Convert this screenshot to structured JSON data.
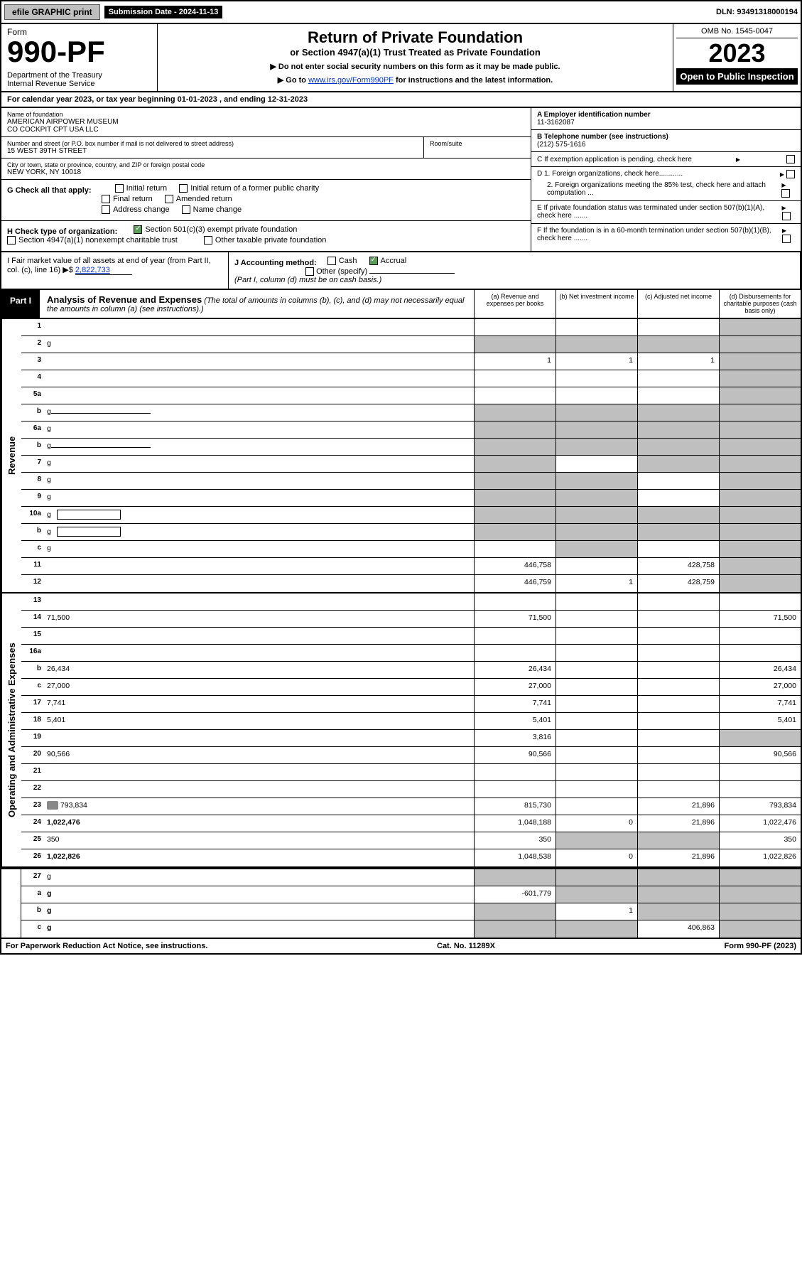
{
  "topbar": {
    "efile": "efile GRAPHIC print",
    "subm_label": "Submission Date - 2024-11-13",
    "dln": "DLN: 93491318000194"
  },
  "header": {
    "form_word": "Form",
    "form_number": "990-PF",
    "dept": "Department of the Treasury\nInternal Revenue Service",
    "title": "Return of Private Foundation",
    "subtitle": "or Section 4947(a)(1) Trust Treated as Private Foundation",
    "instr1": "▶ Do not enter social security numbers on this form as it may be made public.",
    "instr2_pre": "▶ Go to ",
    "instr2_link": "www.irs.gov/Form990PF",
    "instr2_post": " for instructions and the latest information.",
    "omb": "OMB No. 1545-0047",
    "year": "2023",
    "otp": "Open to Public Inspection"
  },
  "calyear": "For calendar year 2023, or tax year beginning 01-01-2023              , and ending 12-31-2023",
  "foundation": {
    "name_label": "Name of foundation",
    "name": "AMERICAN AIRPOWER MUSEUM\nCO COCKPIT CPT USA LLC",
    "addr_label": "Number and street (or P.O. box number if mail is not delivered to street address)",
    "addr": "15 WEST 39TH STREET",
    "room_label": "Room/suite",
    "city_label": "City or town, state or province, country, and ZIP or foreign postal code",
    "city": "NEW YORK, NY  10018",
    "ein_label": "A Employer identification number",
    "ein": "11-3162087",
    "phone_label": "B Telephone number (see instructions)",
    "phone": "(212) 575-1616",
    "c_label": "C If exemption application is pending, check here",
    "d1": "D 1. Foreign organizations, check here............",
    "d2": "2. Foreign organizations meeting the 85% test, check here and attach computation ...",
    "e": "E  If private foundation status was terminated under section 507(b)(1)(A), check here .......",
    "f": "F  If the foundation is in a 60-month termination under section 507(b)(1)(B), check here .......",
    "g_label": "G Check all that apply:",
    "g_opts": [
      "Initial return",
      "Final return",
      "Address change",
      "Initial return of a former public charity",
      "Amended return",
      "Name change"
    ],
    "h_label": "H Check type of organization:",
    "h_opt1": "Section 501(c)(3) exempt private foundation",
    "h_opt2": "Section 4947(a)(1) nonexempt charitable trust",
    "h_opt3": "Other taxable private foundation",
    "i_label": "I Fair market value of all assets at end of year (from Part II, col. (c), line 16) ▶$",
    "i_value": "2,822,733",
    "j_label": "J Accounting method:",
    "j_cash": "Cash",
    "j_accrual": "Accrual",
    "j_other": "Other (specify)",
    "j_note": "(Part I, column (d) must be on cash basis.)"
  },
  "part1": {
    "label": "Part I",
    "title": "Analysis of Revenue and Expenses",
    "note": "(The total of amounts in columns (b), (c), and (d) may not necessarily equal the amounts in column (a) (see instructions).)",
    "cols": {
      "a": "(a) Revenue and expenses per books",
      "b": "(b) Net investment income",
      "c": "(c) Adjusted net income",
      "d": "(d) Disbursements for charitable purposes (cash basis only)"
    }
  },
  "sideLabels": {
    "revenue": "Revenue",
    "opexp": "Operating and Administrative Expenses"
  },
  "rows": [
    {
      "n": "1",
      "d": "",
      "a": "",
      "b": "",
      "c": "",
      "greyD": true
    },
    {
      "n": "2",
      "d": "g",
      "a": "",
      "b": "g",
      "c": "g",
      "allGrey": true,
      "checkbox": true
    },
    {
      "n": "3",
      "d": "",
      "a": "1",
      "b": "1",
      "c": "1",
      "greyD": true
    },
    {
      "n": "4",
      "d": "",
      "a": "",
      "b": "",
      "c": "",
      "greyD": true
    },
    {
      "n": "5a",
      "d": "",
      "a": "",
      "b": "",
      "c": "",
      "greyD": true
    },
    {
      "n": "b",
      "d": "g",
      "a": "",
      "b": "g",
      "c": "g",
      "allGrey": true,
      "underlineAfter": true
    },
    {
      "n": "6a",
      "d": "g",
      "a": "",
      "b": "g",
      "c": "g",
      "allGrey": true
    },
    {
      "n": "b",
      "d": "g",
      "a": "",
      "b": "g",
      "c": "g",
      "allGrey": true,
      "underlineAfter": true
    },
    {
      "n": "7",
      "d": "g",
      "a": "g",
      "b": "",
      "c": "g",
      "greyA": true,
      "greyC": true,
      "greyD": true
    },
    {
      "n": "8",
      "d": "g",
      "a": "g",
      "b": "g",
      "c": "",
      "greyA": true,
      "greyB": true,
      "greyD": true
    },
    {
      "n": "9",
      "d": "g",
      "a": "g",
      "b": "g",
      "c": "",
      "greyA": true,
      "greyB": true,
      "greyD": true
    },
    {
      "n": "10a",
      "d": "g",
      "a": "",
      "b": "g",
      "c": "g",
      "allGrey": true,
      "inputBox": true
    },
    {
      "n": "b",
      "d": "g",
      "a": "",
      "b": "g",
      "c": "g",
      "allGrey": true,
      "inputBox": true
    },
    {
      "n": "c",
      "d": "g",
      "a": "",
      "b": "g",
      "c": "",
      "greyB": true,
      "greyD": true
    },
    {
      "n": "11",
      "d": "",
      "a": "446,758",
      "b": "",
      "c": "428,758",
      "greyD": true
    },
    {
      "n": "12",
      "d": "",
      "a": "446,759",
      "b": "1",
      "c": "428,759",
      "greyD": true,
      "bold": true
    }
  ],
  "rows2": [
    {
      "n": "13",
      "d": "",
      "a": "",
      "b": "",
      "c": ""
    },
    {
      "n": "14",
      "d": "71,500",
      "a": "71,500",
      "b": "",
      "c": ""
    },
    {
      "n": "15",
      "d": "",
      "a": "",
      "b": "",
      "c": ""
    },
    {
      "n": "16a",
      "d": "",
      "a": "",
      "b": "",
      "c": ""
    },
    {
      "n": "b",
      "d": "26,434",
      "a": "26,434",
      "b": "",
      "c": ""
    },
    {
      "n": "c",
      "d": "27,000",
      "a": "27,000",
      "b": "",
      "c": ""
    },
    {
      "n": "17",
      "d": "7,741",
      "a": "7,741",
      "b": "",
      "c": ""
    },
    {
      "n": "18",
      "d": "5,401",
      "a": "5,401",
      "b": "",
      "c": ""
    },
    {
      "n": "19",
      "d": "",
      "a": "3,816",
      "b": "",
      "c": "",
      "greyD": true
    },
    {
      "n": "20",
      "d": "90,566",
      "a": "90,566",
      "b": "",
      "c": ""
    },
    {
      "n": "21",
      "d": "",
      "a": "",
      "b": "",
      "c": ""
    },
    {
      "n": "22",
      "d": "",
      "a": "",
      "b": "",
      "c": ""
    },
    {
      "n": "23",
      "d": "793,834",
      "a": "815,730",
      "b": "",
      "c": "21,896",
      "icon": true
    },
    {
      "n": "24",
      "d": "1,022,476",
      "a": "1,048,188",
      "b": "0",
      "c": "21,896",
      "bold": true
    },
    {
      "n": "25",
      "d": "350",
      "a": "350",
      "b": "g",
      "c": "g",
      "greyB": true,
      "greyC": true
    },
    {
      "n": "26",
      "d": "1,022,826",
      "a": "1,048,538",
      "b": "0",
      "c": "21,896",
      "bold": true
    }
  ],
  "rows3": [
    {
      "n": "27",
      "d": "g",
      "a": "g",
      "b": "g",
      "c": "g",
      "allGrey": true
    },
    {
      "n": "a",
      "d": "g",
      "a": "-601,779",
      "b": "g",
      "c": "g",
      "greyB": true,
      "greyC": true,
      "greyD": true,
      "bold": true
    },
    {
      "n": "b",
      "d": "g",
      "a": "g",
      "b": "1",
      "c": "g",
      "greyA": true,
      "greyC": true,
      "greyD": true,
      "bold": true
    },
    {
      "n": "c",
      "d": "g",
      "a": "g",
      "b": "g",
      "c": "406,863",
      "greyA": true,
      "greyB": true,
      "greyD": true,
      "bold": true
    }
  ],
  "footer": {
    "left": "For Paperwork Reduction Act Notice, see instructions.",
    "mid": "Cat. No. 11289X",
    "right": "Form 990-PF (2023)"
  }
}
